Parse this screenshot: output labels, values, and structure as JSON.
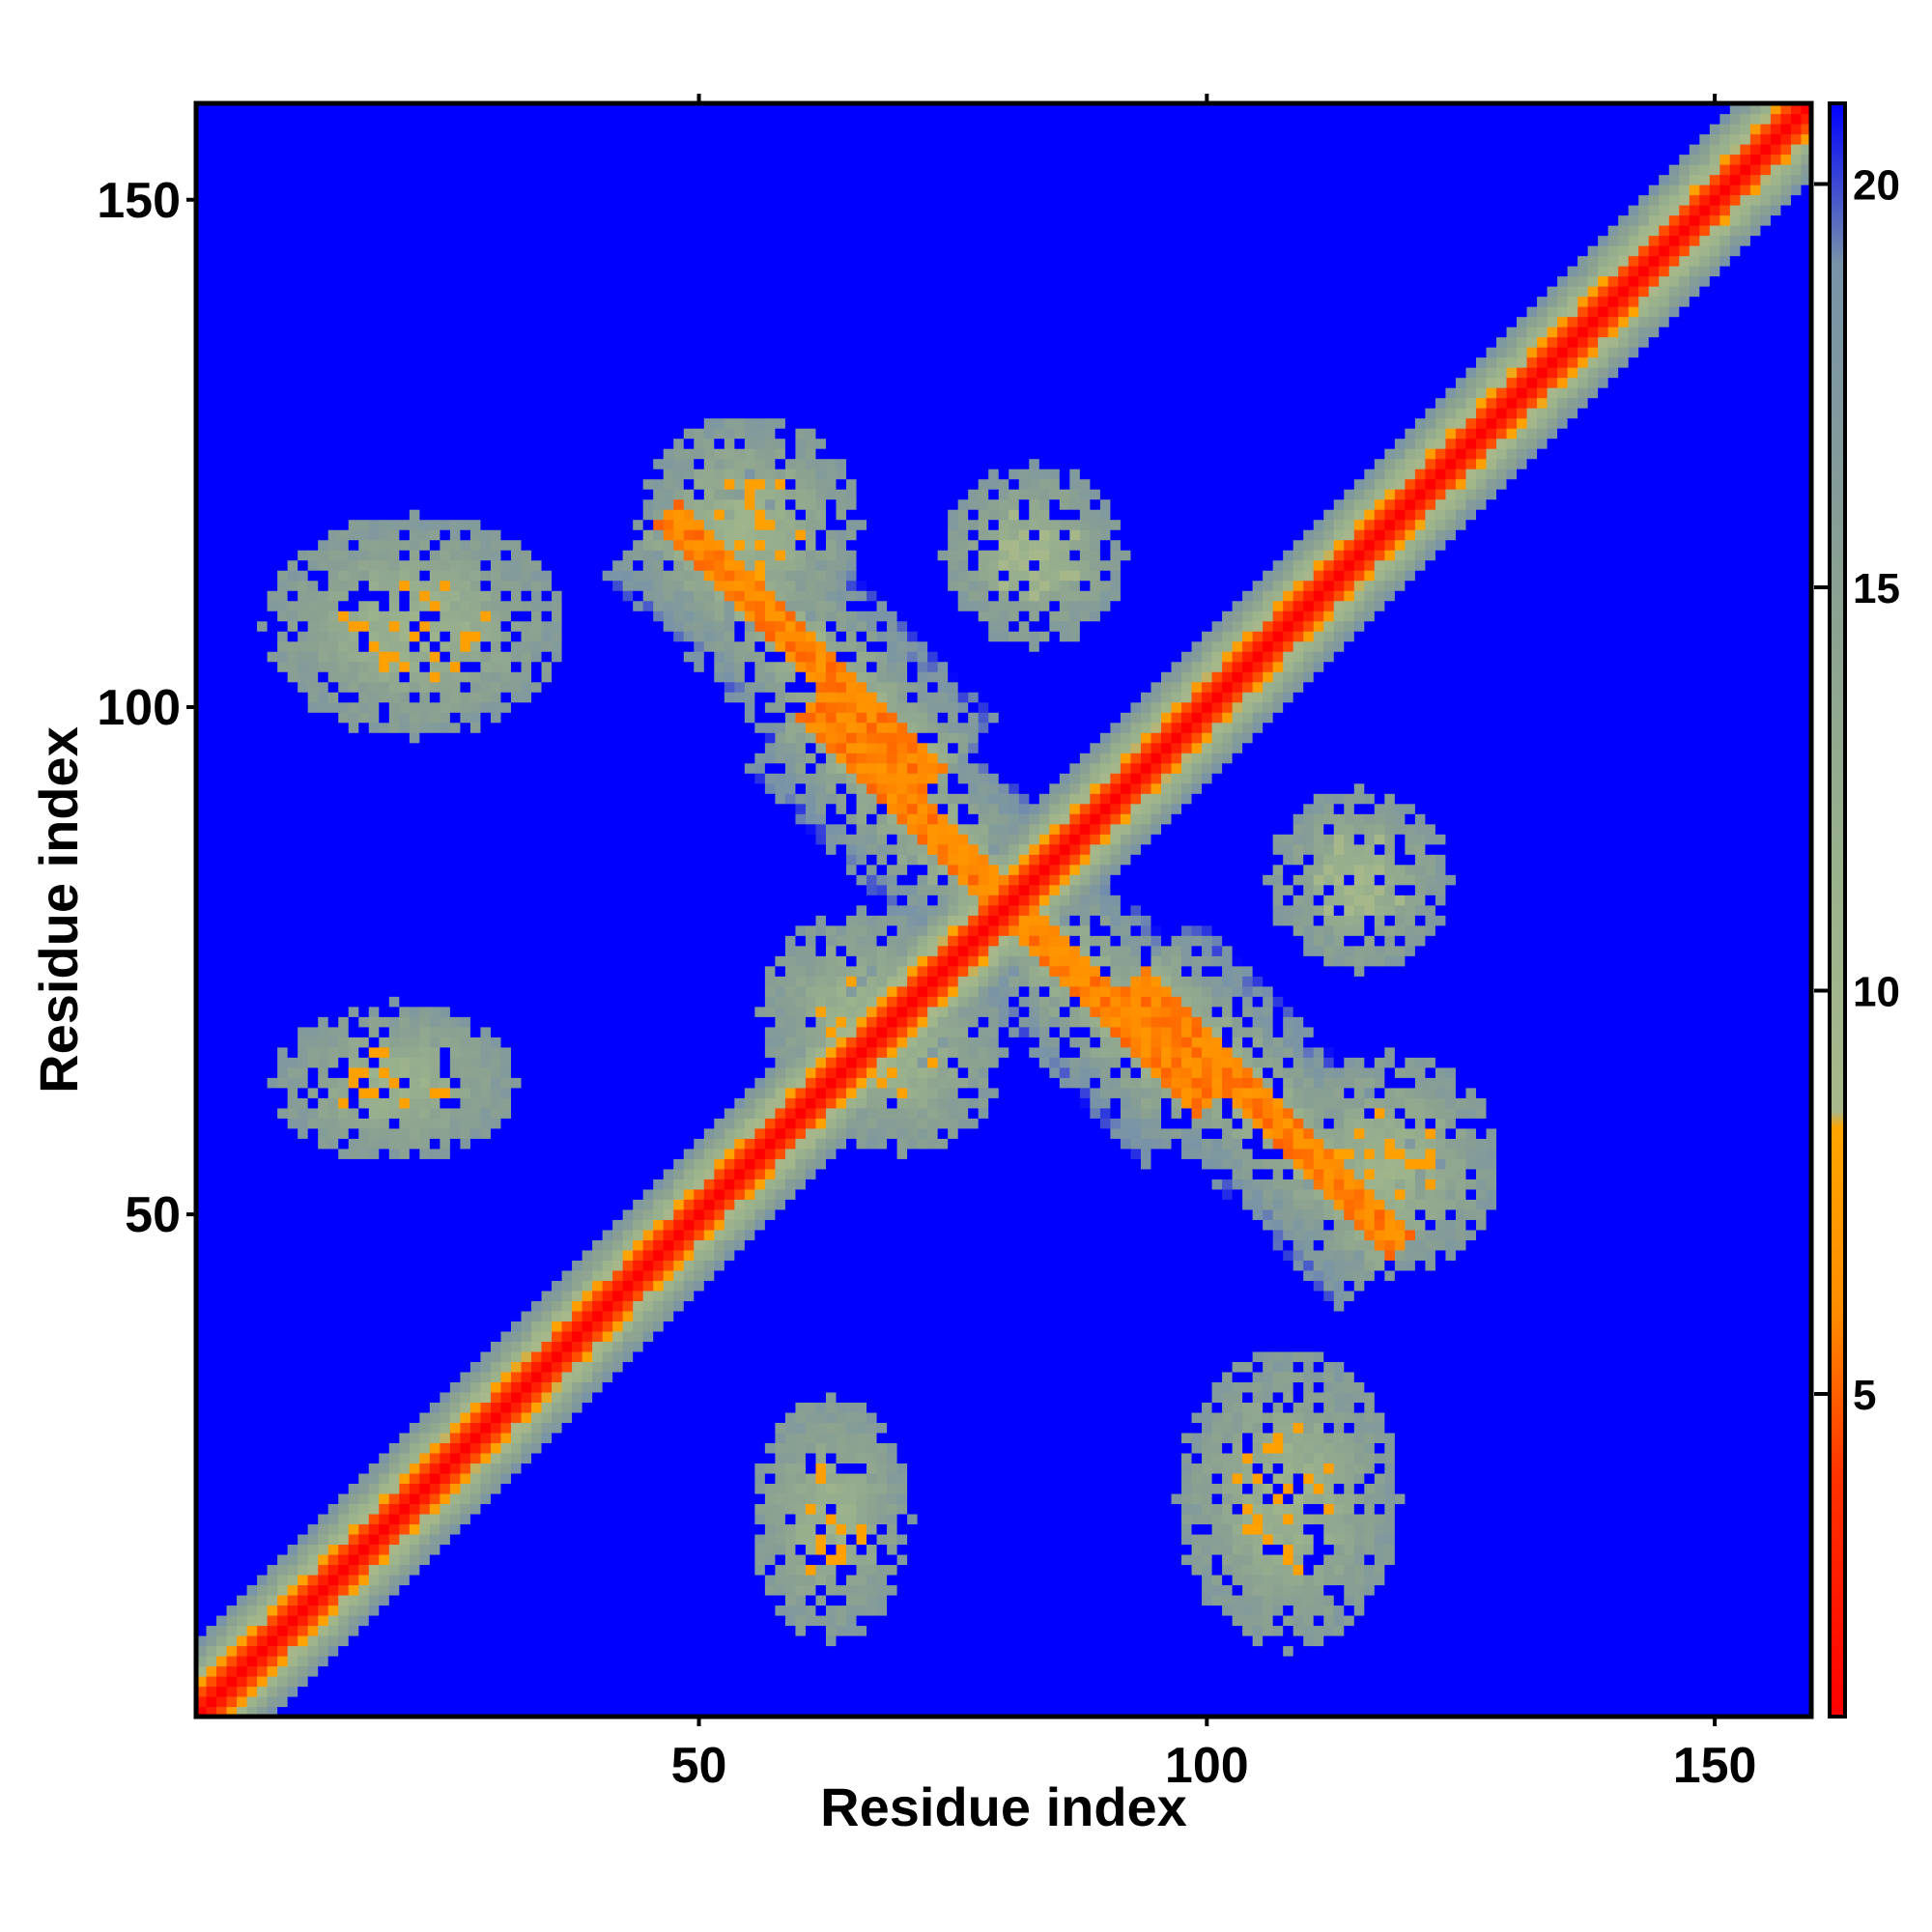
{
  "chart_data": {
    "type": "heatmap",
    "title": "",
    "xlabel": "Residue index",
    "ylabel": "Residue index",
    "xlim": [
      1,
      159
    ],
    "ylim": [
      1,
      159
    ],
    "xticks": [
      50,
      100,
      150
    ],
    "yticks": [
      50,
      100,
      150
    ],
    "colorbar": {
      "range": [
        1,
        21
      ],
      "ticks": [
        5,
        10,
        15,
        20
      ],
      "stops": [
        {
          "value": 1,
          "color": "#ff0000"
        },
        {
          "value": 4,
          "color": "#ff3300"
        },
        {
          "value": 6,
          "color": "#ff8c00"
        },
        {
          "value": 8.3,
          "color": "#ffa500"
        },
        {
          "value": 8.5,
          "color": "#a8b88a"
        },
        {
          "value": 11,
          "color": "#9cb38c"
        },
        {
          "value": 15,
          "color": "#8aa092"
        },
        {
          "value": 19,
          "color": "#7893a8"
        },
        {
          "value": 21,
          "color": "#0000ff"
        }
      ]
    },
    "background_value": 21,
    "matrix_size": 159,
    "symmetric": true,
    "diagonal_band": {
      "center_value": 1,
      "half_width": 2.5,
      "halo_width": 7
    },
    "contact_features": [
      {
        "type": "antiparallel",
        "center": [
          60,
          106
        ],
        "length": 26,
        "min_value": 5
      },
      {
        "type": "antiparallel",
        "center": [
          90,
          71
        ],
        "length": 20,
        "min_value": 5
      },
      {
        "type": "block",
        "center": [
          20,
          63
        ],
        "size": [
          24,
          16
        ],
        "min_value": 6
      },
      {
        "type": "block",
        "center": [
          22,
          108
        ],
        "size": [
          30,
          22
        ],
        "min_value": 6
      },
      {
        "type": "block",
        "center": [
          55,
          118
        ],
        "size": [
          22,
          22
        ],
        "min_value": 6
      },
      {
        "type": "block",
        "center": [
          83,
          115
        ],
        "size": [
          18,
          18
        ],
        "min_value": 7
      },
      {
        "type": "block",
        "center": [
          66,
          70
        ],
        "size": [
          20,
          20
        ],
        "min_value": 6
      }
    ]
  }
}
